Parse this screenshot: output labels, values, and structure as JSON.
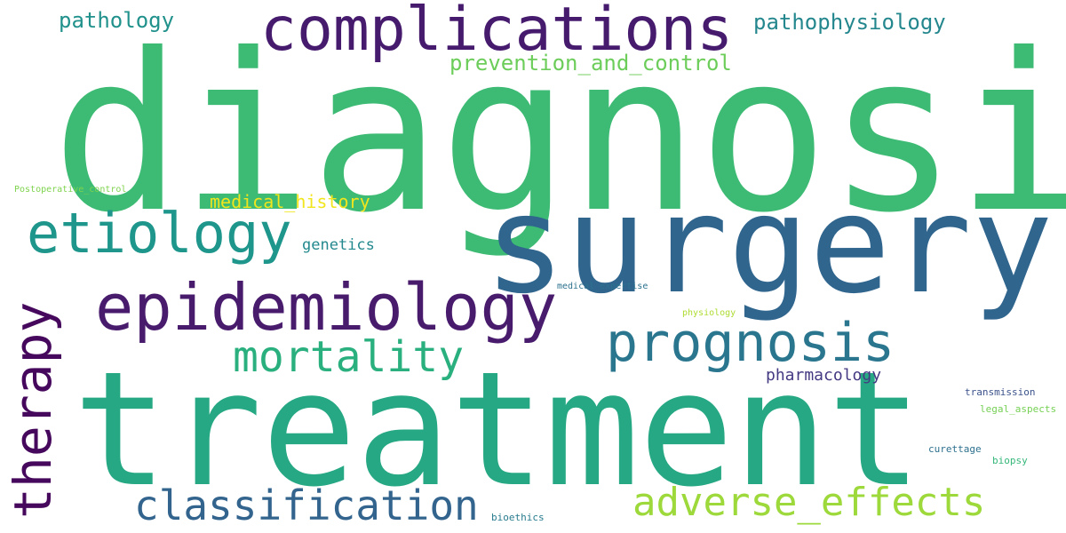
{
  "words": [
    {
      "key": "diagnosis",
      "text": "diagnosis",
      "color": "#3dbb74"
    },
    {
      "key": "surgery",
      "text": "surgery",
      "color": "#30658e"
    },
    {
      "key": "treatment",
      "text": "treatment",
      "color": "#25a883"
    },
    {
      "key": "complications",
      "text": "complications",
      "color": "#461b6e"
    },
    {
      "key": "epidemiology",
      "text": "epidemiology",
      "color": "#481b6d"
    },
    {
      "key": "etiology",
      "text": "etiology",
      "color": "#1e968b"
    },
    {
      "key": "prognosis",
      "text": "prognosis",
      "color": "#2a768e"
    },
    {
      "key": "therapy",
      "text": "therapy",
      "color": "#46085c"
    },
    {
      "key": "mortality",
      "text": "mortality",
      "color": "#2ab07f"
    },
    {
      "key": "classification",
      "text": "classification",
      "color": "#32648e"
    },
    {
      "key": "adverse_effects",
      "text": "adverse_effects",
      "color": "#9dd93b"
    },
    {
      "key": "pathology",
      "text": "pathology",
      "color": "#21918c"
    },
    {
      "key": "pathophysiology",
      "text": "pathophysiology",
      "color": "#24878e"
    },
    {
      "key": "prevention_and_control",
      "text": "prevention_and_control",
      "color": "#6ccd5a"
    },
    {
      "key": "medical_history",
      "text": "medical_history",
      "color": "#f1e51d"
    },
    {
      "key": "genetics",
      "text": "genetics",
      "color": "#23898e"
    },
    {
      "key": "pharmacology",
      "text": "pharmacology",
      "color": "#443a83"
    },
    {
      "key": "postoperative_control",
      "text": "Postoperative_control",
      "color": "#7fd34e"
    },
    {
      "key": "medical_expertise",
      "text": "medical_expertise",
      "color": "#2c728e"
    },
    {
      "key": "physiology",
      "text": "physiology",
      "color": "#addc30"
    },
    {
      "key": "transmission",
      "text": "transmission",
      "color": "#3b528b"
    },
    {
      "key": "legal_aspects",
      "text": "legal_aspects",
      "color": "#75d054"
    },
    {
      "key": "curettage",
      "text": "curettage",
      "color": "#2d708e"
    },
    {
      "key": "biopsy",
      "text": "biopsy",
      "color": "#35b779"
    },
    {
      "key": "bioethics",
      "text": "bioethics",
      "color": "#287c8e"
    }
  ]
}
